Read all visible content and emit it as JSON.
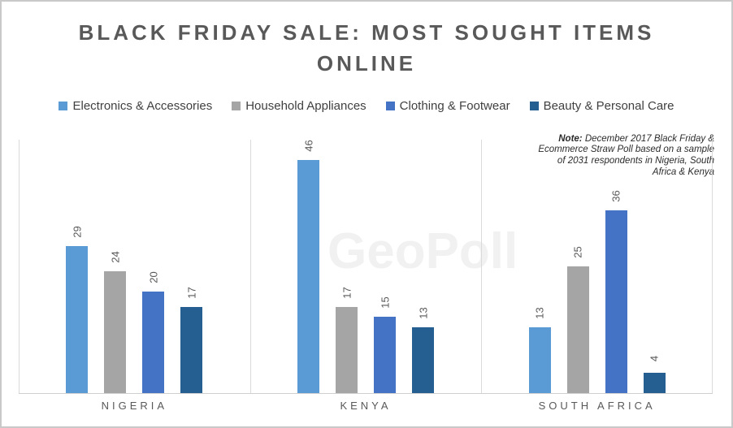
{
  "title": "BLACK FRIDAY SALE: MOST SOUGHT ITEMS ONLINE",
  "note": {
    "prefix": "Note:",
    "text": " December 2017 Black Friday & Ecommerce Straw Poll based on a sample of 2031 respondents in Nigeria, South Africa & Kenya"
  },
  "watermark": "GeoPoll",
  "colors": {
    "title_text": "#595959",
    "legend_text": "#404040",
    "axis_line": "#cfcfcf",
    "separator_line": "#dadada",
    "watermark_text": "#f1f1f1"
  },
  "chart_data": {
    "type": "bar",
    "title": "BLACK FRIDAY SALE: MOST SOUGHT ITEMS ONLINE",
    "categories": [
      "NIGERIA",
      "KENYA",
      "SOUTH AFRICA"
    ],
    "series": [
      {
        "name": "Electronics & Accessories",
        "color": "#5B9BD5",
        "values": [
          29,
          46,
          13
        ]
      },
      {
        "name": "Household Appliances",
        "color": "#A5A5A5",
        "values": [
          24,
          17,
          25
        ]
      },
      {
        "name": "Clothing & Footwear",
        "color": "#4472C4",
        "values": [
          20,
          15,
          36
        ]
      },
      {
        "name": "Beauty & Personal Care",
        "color": "#255E91",
        "values": [
          17,
          13,
          4
        ]
      }
    ],
    "ylim": [
      0,
      50
    ],
    "xlabel": "",
    "ylabel": "",
    "data_labels": true,
    "data_label_rotation": -90,
    "legend_position": "top",
    "y_axis_visible": false,
    "gridlines": "vertical category separators"
  }
}
